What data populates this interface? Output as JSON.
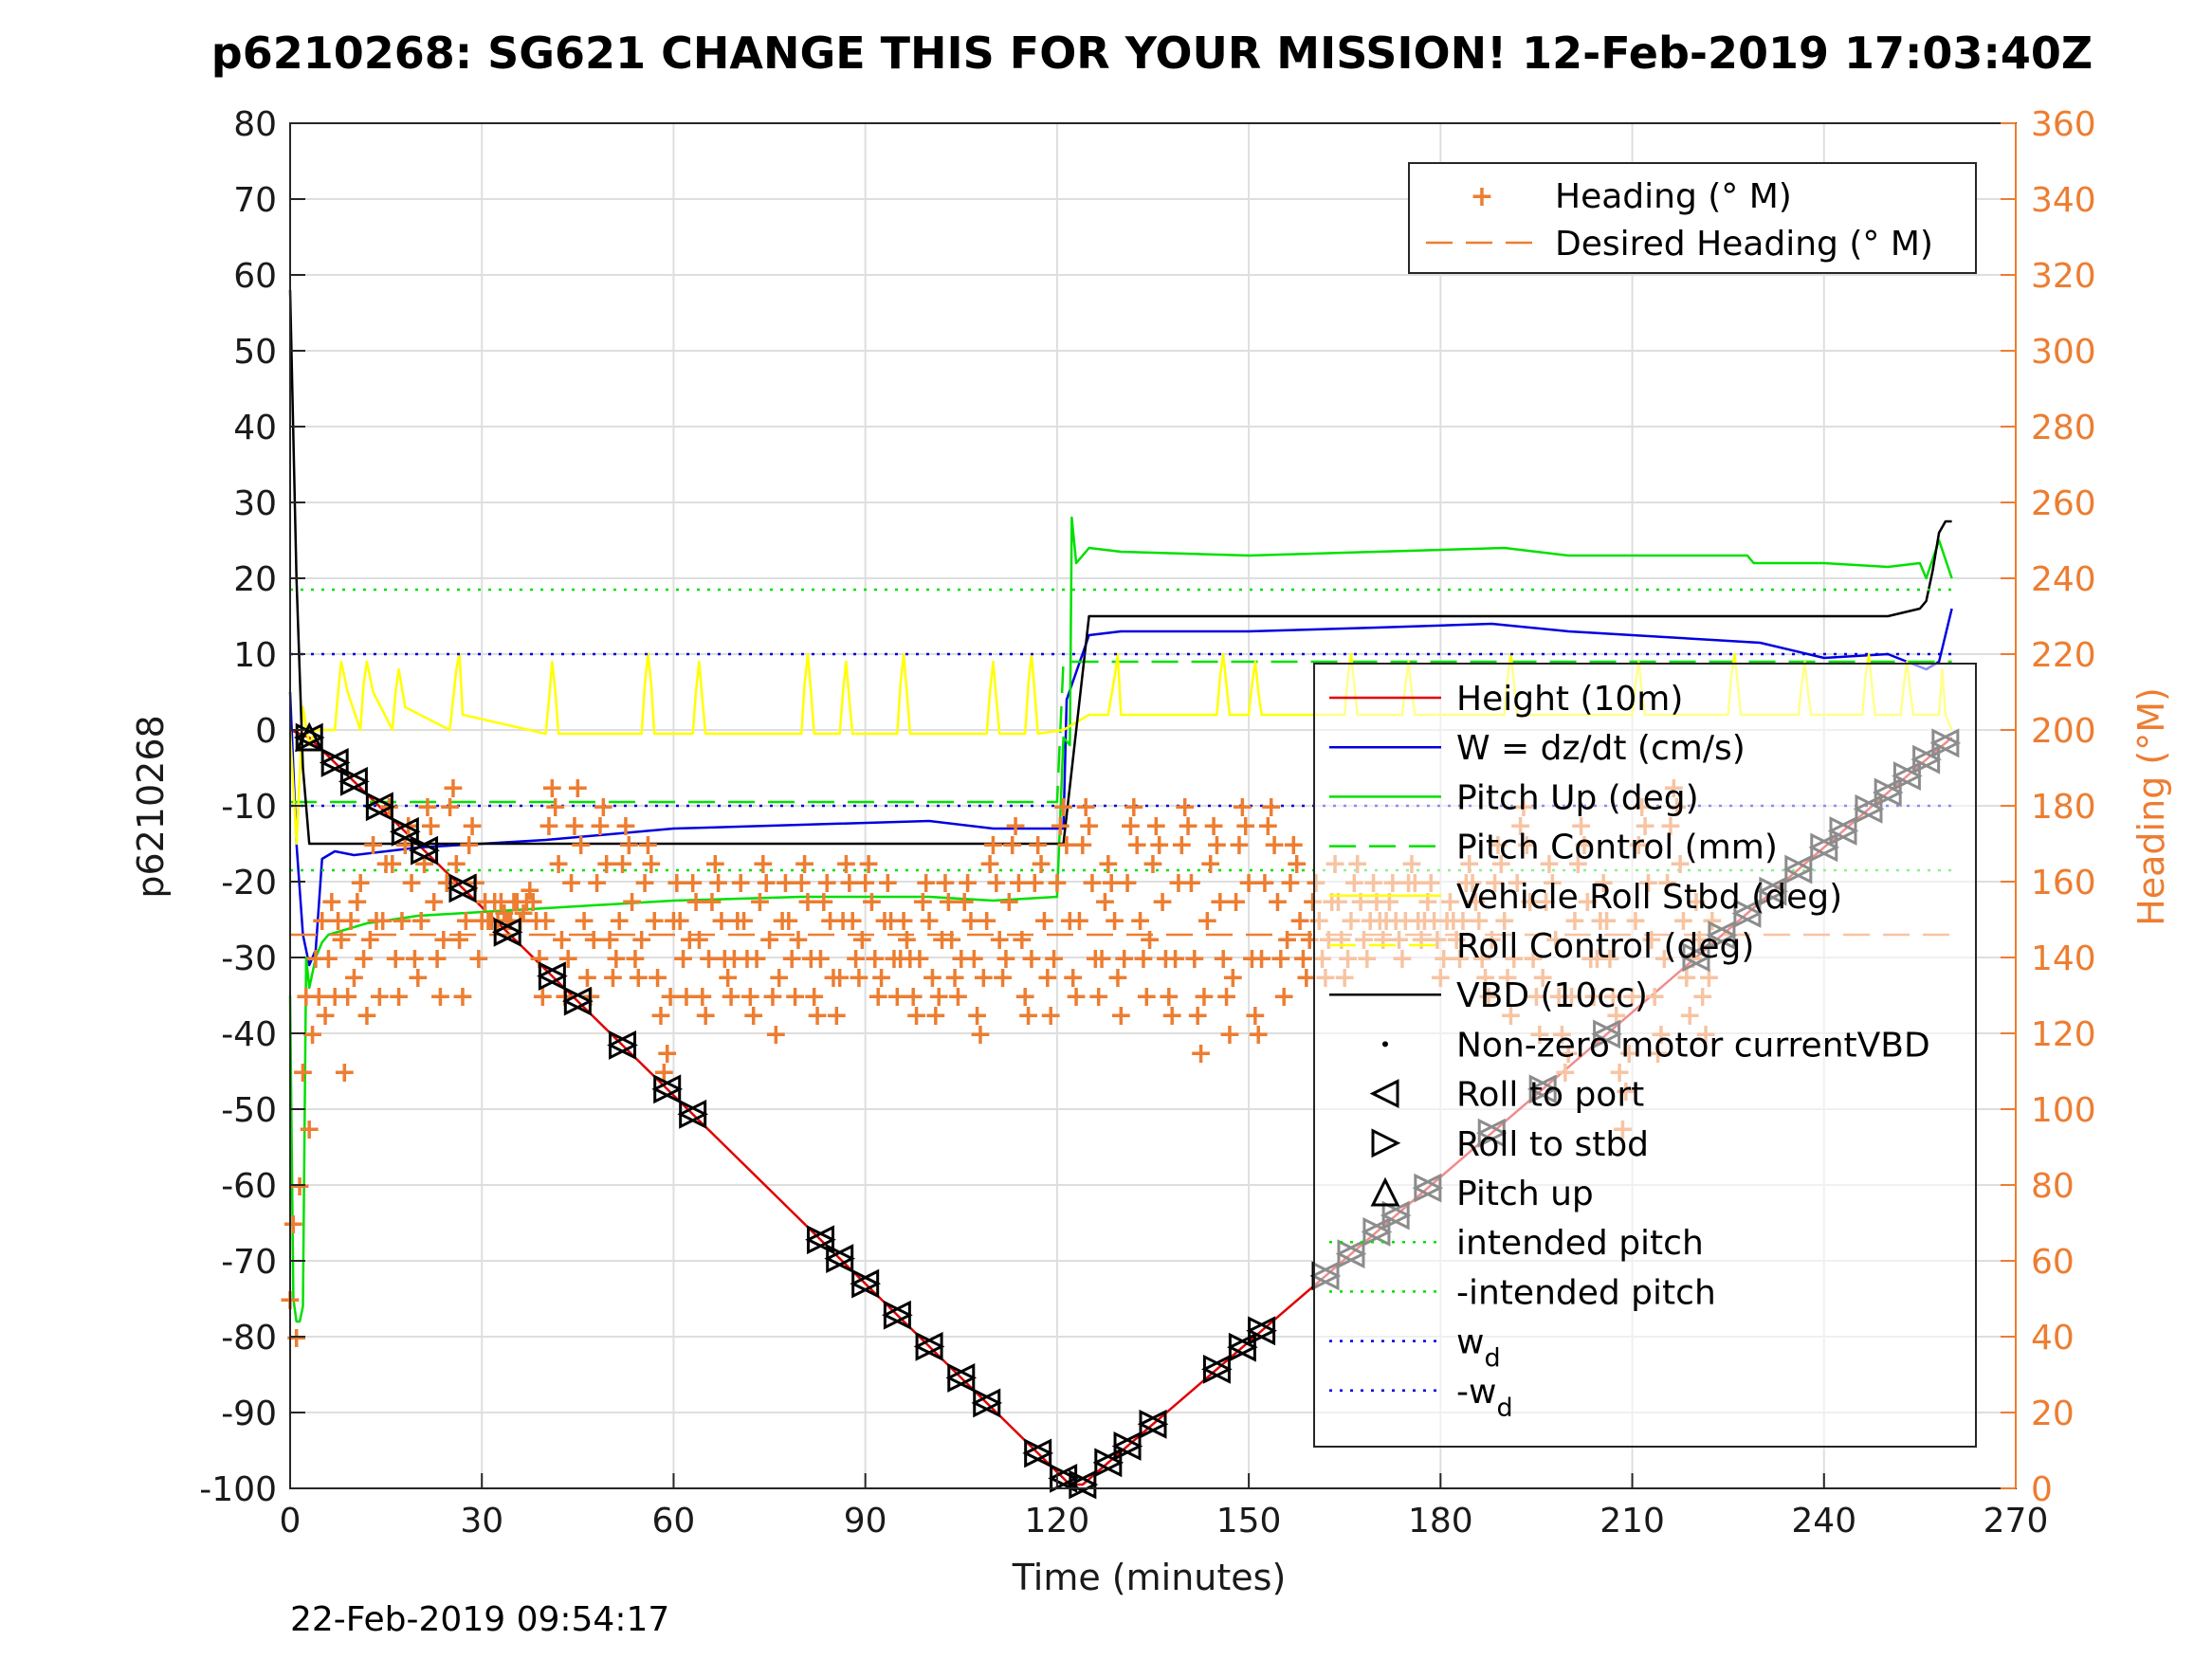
{
  "chart_data": {
    "type": "line",
    "title": "p6210268: SG621 CHANGE THIS FOR YOUR MISSION! 12-Feb-2019 17:03:40Z",
    "xlabel": "Time (minutes)",
    "ylabel": "p6210268",
    "ylabel_right": "Heading (°M)",
    "xlim": [
      0,
      270
    ],
    "ylim": [
      -100,
      80
    ],
    "ylim_right": [
      0,
      360
    ],
    "xticks": [
      0,
      30,
      60,
      90,
      120,
      150,
      180,
      210,
      240,
      270
    ],
    "yticks": [
      80,
      70,
      60,
      50,
      40,
      30,
      20,
      10,
      0,
      -10,
      -20,
      -30,
      -40,
      -50,
      -60,
      -70,
      -80,
      -90,
      -100
    ],
    "yticks_right": [
      360,
      340,
      320,
      300,
      280,
      260,
      240,
      220,
      200,
      180,
      160,
      140,
      120,
      100,
      80,
      60,
      40,
      20,
      0
    ],
    "grid": true,
    "timestamp": "22-Feb-2019 09:54:17",
    "legend_right_axis": [
      {
        "label": "Heading (° M)",
        "color": "#ed7d31",
        "style": "plus"
      },
      {
        "label": "Desired Heading (° M)",
        "color": "#ed7d31",
        "style": "dashed"
      }
    ],
    "legend_main": [
      {
        "label": "Height (10m)",
        "color": "#e00000",
        "style": "line"
      },
      {
        "label": "W = dz/dt (cm/s)",
        "color": "#0000e0",
        "style": "line"
      },
      {
        "label": "Pitch Up (deg)",
        "color": "#00e000",
        "style": "line"
      },
      {
        "label": "Pitch Control (mm)",
        "color": "#00e000",
        "style": "dashed"
      },
      {
        "label": "Vehicle Roll Stbd (deg)",
        "color": "#ffff00",
        "style": "line"
      },
      {
        "label": "Roll Control (deg)",
        "color": "#ffff00",
        "style": "dashed"
      },
      {
        "label": "VBD (10cc)",
        "color": "#000000",
        "style": "line"
      },
      {
        "label": "Non-zero motor currentVBD",
        "color": "#000000",
        "style": "dot"
      },
      {
        "label": "Roll to port",
        "color": "#000000",
        "style": "tri-left"
      },
      {
        "label": "Roll to stbd",
        "color": "#000000",
        "style": "tri-right"
      },
      {
        "label": "Pitch up",
        "color": "#000000",
        "style": "tri-up"
      },
      {
        "label": "intended pitch",
        "color": "#00e000",
        "style": "dotted"
      },
      {
        "label": "-intended pitch",
        "color": "#00e000",
        "style": "dotted"
      },
      {
        "label": "w",
        "sub": "d",
        "color": "#0000e0",
        "style": "dotted"
      },
      {
        "label": "-w",
        "sub": "d",
        "color": "#0000e0",
        "style": "dotted"
      }
    ],
    "series": [
      {
        "name": "Height (10m)",
        "color": "#e00000",
        "x": [
          0,
          3,
          122,
          124,
          260
        ],
        "y": [
          0,
          -1,
          -99.5,
          -99.5,
          -1
        ]
      },
      {
        "name": "W = dz/dt (cm/s)",
        "color": "#0000e0",
        "x": [
          0,
          1,
          2,
          3,
          4,
          5,
          7,
          10,
          20,
          40,
          60,
          80,
          100,
          110,
          121,
          121.5,
          125,
          130,
          150,
          170,
          188,
          200,
          220,
          230,
          240,
          250,
          256,
          258,
          260
        ],
        "y": [
          5,
          -15,
          -27,
          -31,
          -29,
          -17,
          -16,
          -16.5,
          -15.5,
          -14.5,
          -13,
          -12.5,
          -12,
          -13,
          -13,
          4,
          12.5,
          13,
          13,
          13.5,
          14,
          13,
          12,
          11.5,
          9.5,
          10,
          8,
          9,
          16
        ]
      },
      {
        "name": "Pitch Up (deg)",
        "color": "#00e000",
        "x": [
          0,
          0.5,
          1,
          1.5,
          2,
          2.5,
          3,
          4,
          5,
          6,
          8,
          12,
          20,
          40,
          60,
          80,
          100,
          110,
          120,
          121,
          122,
          122.3,
          123,
          125,
          130,
          150,
          170,
          190,
          200,
          220,
          228,
          229,
          240,
          250,
          255,
          256,
          258,
          260
        ],
        "y": [
          -35,
          -75,
          -78,
          -78,
          -76,
          -30,
          -34,
          -30,
          -28,
          -27,
          -26.5,
          -25.5,
          -24.5,
          -23.5,
          -22.5,
          -22,
          -22,
          -22.5,
          -22,
          -1,
          -2,
          28,
          22,
          24,
          23.5,
          23,
          23.5,
          24,
          23,
          23,
          23,
          22,
          22,
          21.5,
          22,
          20,
          25,
          20
        ]
      },
      {
        "name": "Pitch Control (mm)",
        "color": "#00e000",
        "dash": true,
        "x": [
          0,
          120,
          121,
          124,
          130,
          260
        ],
        "y": [
          -9.5,
          -9.5,
          9,
          9,
          9,
          9
        ]
      },
      {
        "name": "Vehicle Roll Stbd (deg)",
        "color": "#ffff00",
        "x": [
          0,
          1,
          2,
          3,
          4,
          7,
          7.5,
          8,
          9,
          11,
          11.5,
          12,
          13,
          16,
          16.5,
          17,
          18,
          25,
          26,
          26.5,
          27,
          40,
          40.5,
          41,
          41.5,
          42,
          55,
          55.5,
          56,
          56.5,
          57,
          63,
          63.5,
          64,
          64.5,
          65,
          80,
          80.5,
          81,
          81.5,
          82,
          86,
          86.5,
          87,
          87.5,
          88,
          95,
          95.5,
          96,
          96.5,
          97,
          109,
          109.5,
          110,
          110.5,
          111,
          115,
          115.5,
          116,
          116.5,
          117,
          121,
          125,
          128,
          129,
          129.5,
          130,
          145,
          145.5,
          146,
          146.5,
          147,
          150,
          150.5,
          151,
          151.5,
          152,
          165,
          165.5,
          166,
          166.5,
          167,
          174,
          174.5,
          175,
          175.5,
          176,
          190,
          190.5,
          191,
          191.5,
          192,
          210,
          210.5,
          211,
          211.5,
          212,
          225,
          225.5,
          226,
          226.5,
          227,
          236,
          236.5,
          237,
          237.5,
          238,
          246,
          246.5,
          247,
          247.5,
          248,
          252,
          252.5,
          253,
          253.5,
          254,
          258,
          258.5,
          259,
          260
        ],
        "y": [
          0,
          -15,
          3,
          -2,
          0,
          0,
          5,
          9,
          5,
          0,
          6,
          9,
          5,
          0,
          5,
          8,
          3,
          0,
          8,
          10,
          2,
          -0.5,
          4,
          9,
          5,
          -0.5,
          -0.5,
          6,
          10,
          6,
          -0.5,
          -0.5,
          5,
          9,
          4,
          -0.5,
          -0.5,
          6,
          10,
          5,
          -0.5,
          -0.5,
          5,
          9,
          4,
          -0.5,
          -0.5,
          6,
          10,
          5,
          -0.5,
          -0.5,
          5,
          9,
          4,
          -0.5,
          -0.5,
          6,
          10,
          5,
          -0.5,
          0,
          2,
          2,
          7,
          10,
          2,
          2,
          7,
          10,
          6,
          2,
          2,
          6,
          9,
          5,
          2,
          2,
          7,
          10,
          6,
          2,
          2,
          6,
          9,
          5,
          2,
          2,
          7,
          10,
          6,
          2,
          2,
          6,
          9,
          5,
          2,
          2,
          7,
          10,
          6,
          2,
          2,
          6,
          9,
          5,
          2,
          2,
          7,
          10,
          6,
          2,
          2,
          6,
          9,
          5,
          2,
          2,
          8,
          2,
          0
        ]
      },
      {
        "name": "VBD (10cc)",
        "color": "#000000",
        "x": [
          0,
          1,
          2,
          3,
          3.5,
          60,
          120,
          121,
          125,
          130,
          180,
          200,
          220,
          230,
          240,
          250,
          255,
          256,
          257,
          258,
          259,
          260
        ],
        "y": [
          58,
          20,
          -5,
          -15,
          -15,
          -15,
          -15,
          -15,
          15,
          15,
          15,
          15,
          15,
          15,
          15,
          15,
          16,
          17,
          21,
          26,
          27.5,
          27.5
        ]
      },
      {
        "name": "intended pitch",
        "color": "#00e000",
        "dotted": true,
        "x": [
          0,
          260
        ],
        "y": [
          18.5,
          18.5
        ]
      },
      {
        "name": "-intended pitch",
        "color": "#00e000",
        "dotted": true,
        "x": [
          0,
          260
        ],
        "y": [
          -18.5,
          -18.5
        ]
      },
      {
        "name": "w_d",
        "color": "#0000e0",
        "dotted": true,
        "x": [
          0,
          260
        ],
        "y": [
          10,
          10
        ]
      },
      {
        "name": "-w_d",
        "color": "#0000e0",
        "dotted": true,
        "x": [
          0,
          260
        ],
        "y": [
          -10,
          -10
        ]
      },
      {
        "name": "Desired Heading (° M)",
        "color": "#ed7d31",
        "axis": "right",
        "dash": true,
        "x": [
          0,
          260
        ],
        "y": [
          146,
          146
        ]
      }
    ],
    "heading_right_axis": {
      "name": "Heading (° M)",
      "color": "#ed7d31",
      "step_minutes": 0.5,
      "values": [
        50,
        70,
        40,
        80,
        110,
        130,
        95,
        120,
        140,
        130,
        150,
        125,
        140,
        155,
        130,
        150,
        145,
        110,
        130,
        150,
        135,
        155,
        160,
        140,
        125,
        145,
        170,
        150,
        130,
        150,
        165,
        180,
        165,
        140,
        130,
        150,
        170,
        175,
        160,
        140,
        135,
        150,
        165,
        180,
        175,
        155,
        140,
        130,
        145,
        160,
        180,
        185,
        165,
        145,
        130,
        150,
        170,
        175,
        160,
        140,
        150,
        155,
        150,
        150,
        155,
        150,
        155,
        152,
        150,
        150,
        155,
        155,
        150,
        152,
        155,
        158,
        155,
        150,
        140,
        130,
        150,
        175,
        185,
        180,
        165,
        145,
        130,
        140,
        160,
        175,
        185,
        170,
        150,
        135,
        130,
        145,
        160,
        175,
        180,
        165,
        145,
        135,
        140,
        150,
        165,
        175,
        170,
        155,
        140,
        135,
        145,
        160,
        170,
        165,
        150,
        135,
        125,
        110,
        115,
        130,
        150,
        160,
        150,
        140,
        130,
        145,
        160,
        155,
        145,
        130,
        125,
        140,
        155,
        165,
        160,
        150,
        140,
        135,
        130,
        140,
        150,
        160,
        150,
        140,
        130,
        125,
        140,
        155,
        165,
        160,
        145,
        130,
        120,
        135,
        150,
        160,
        150,
        140,
        130,
        145,
        160,
        165,
        155,
        140,
        130,
        125,
        140,
        155,
        160,
        150,
        135,
        125,
        135,
        150,
        165,
        160,
        150,
        140,
        135,
        145,
        160,
        165,
        155,
        140,
        130,
        135,
        150,
        160,
        150,
        140,
        130,
        140,
        150,
        145,
        140,
        130,
        125,
        140,
        155,
        160,
        150,
        135,
        125,
        130,
        145,
        160,
        155,
        145,
        135,
        130,
        140,
        155,
        160,
        150,
        140,
        125,
        120,
        135,
        150,
        165,
        170,
        160,
        145,
        135,
        140,
        155,
        170,
        175,
        160,
        145,
        130,
        125,
        140,
        160,
        170,
        165,
        150,
        135,
        125,
        140,
        160,
        175,
        180,
        170,
        150,
        135,
        130,
        150,
        170,
        180,
        175,
        160,
        140,
        130,
        140,
        155,
        165,
        160,
        150,
        135,
        125,
        140,
        160,
        175,
        180,
        170,
        150,
        140,
        130,
        145,
        165,
        175,
        170,
        155,
        140,
        130,
        125,
        140,
        160,
        170,
        180,
        175,
        160,
        140,
        125,
        115,
        130,
        150,
        165,
        175,
        170,
        155,
        140,
        130,
        120,
        135,
        155,
        170,
        180,
        175,
        160,
        140,
        125,
        120,
        140,
        160,
        175,
        180,
        170,
        155,
        140,
        130,
        145,
        160,
        170,
        165,
        150,
        140,
        135,
        145,
        155,
        160,
        150,
        140,
        135,
        145,
        155,
        165,
        155,
        145,
        135,
        140,
        150,
        160,
        165,
        155,
        145,
        140,
        150,
        160,
        155,
        150,
        145,
        150,
        155,
        160,
        150,
        145,
        140,
        150,
        160,
        165,
        160,
        150,
        145,
        150,
        155,
        160,
        150,
        145,
        135,
        140,
        150,
        155,
        150,
        145,
        140,
        150,
        160,
        165,
        160,
        155,
        150,
        140,
        135,
        130,
        145,
        160,
        170,
        165,
        150,
        135,
        125,
        140,
        160,
        175,
        180,
        170,
        155,
        140,
        130,
        120,
        135,
        155,
        165,
        160,
        145,
        130,
        120,
        110,
        115,
        130,
        150,
        165,
        175,
        170,
        155,
        140,
        130,
        140,
        150,
        160,
        150,
        140,
        130,
        125,
        110,
        95,
        105,
        115,
        130,
        150,
        170,
        180,
        175,
        160,
        145,
        130,
        115,
        120,
        140,
        160,
        175,
        185,
        180,
        165,
        150,
        135,
        125,
        140,
        155,
        145,
        130,
        120,
        135,
        150
      ]
    },
    "markers": {
      "roll_to_port": {
        "x": [
          3,
          7,
          10,
          14,
          18,
          21,
          27,
          34,
          41,
          45,
          52,
          59,
          63,
          83,
          86,
          90,
          95,
          100,
          105,
          109,
          117,
          121,
          124,
          128,
          131,
          135,
          145,
          149,
          152,
          162,
          166,
          170,
          173,
          178,
          188,
          196,
          206,
          220,
          224,
          228,
          232,
          236,
          240,
          243,
          247,
          250,
          253,
          256,
          259
        ]
      },
      "roll_to_stbd": {
        "x": [
          3,
          7,
          10,
          14,
          18,
          21,
          27,
          34,
          41,
          45,
          52,
          59,
          63,
          83,
          86,
          90,
          95,
          100,
          105,
          109,
          117,
          121,
          124,
          128,
          131,
          135,
          145,
          149,
          152,
          162,
          166,
          170,
          173,
          178,
          188,
          196,
          206,
          220,
          224,
          228,
          232,
          236,
          240,
          243,
          247,
          250,
          253,
          256,
          259
        ]
      },
      "pitch_up": {
        "x": [
          3
        ]
      }
    }
  }
}
